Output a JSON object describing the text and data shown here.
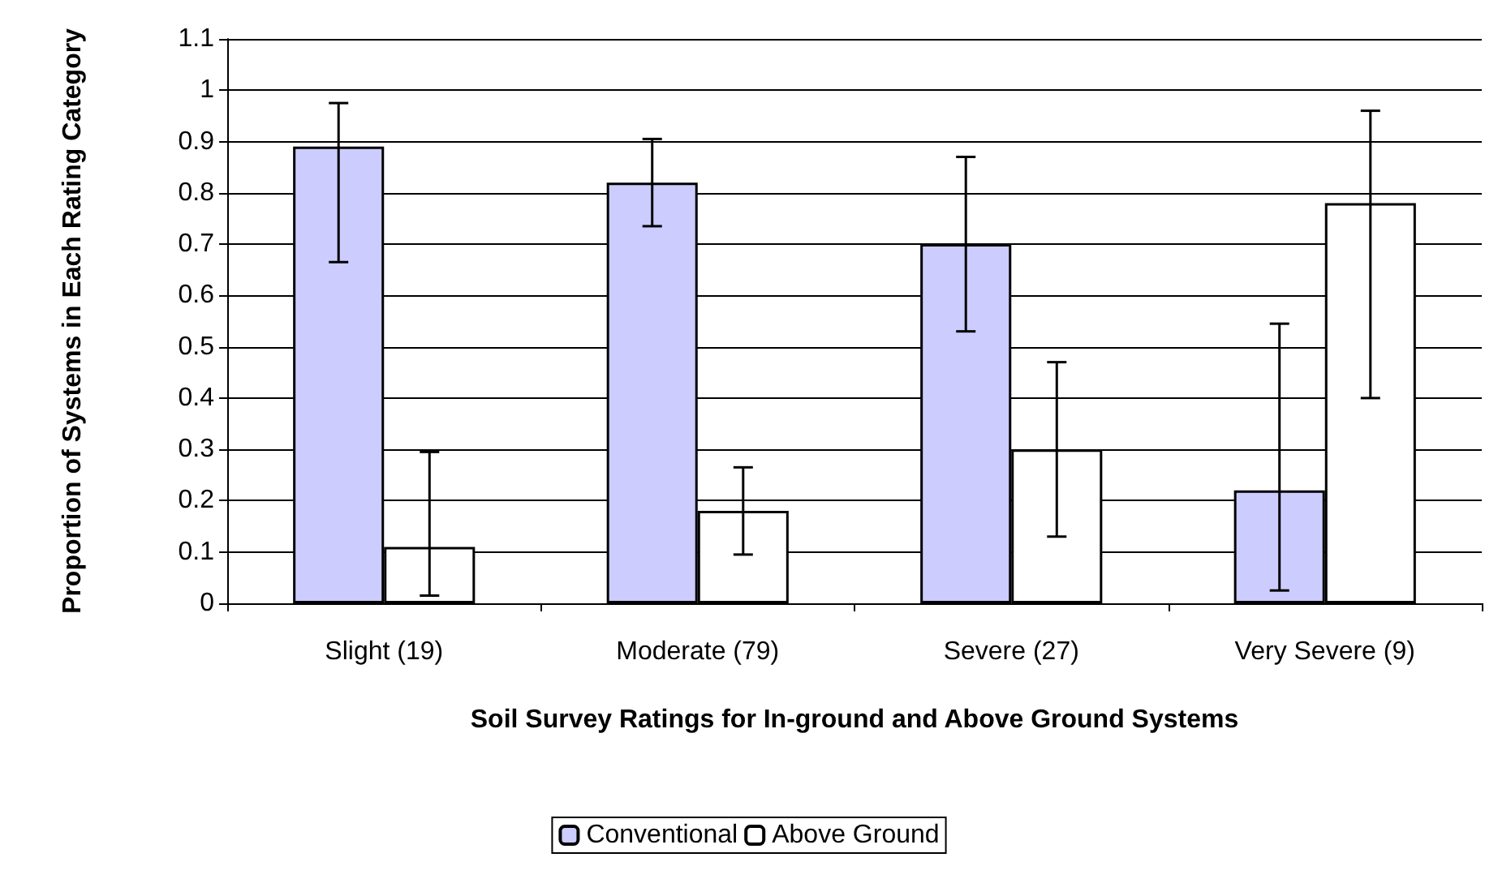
{
  "chart_data": {
    "type": "bar",
    "xlabel": "Soil Survey Ratings for In-ground and Above Ground Systems",
    "ylabel": "Proportion of Systems in Each Rating Category",
    "categories": [
      "Slight (19)",
      "Moderate (79)",
      "Severe (27)",
      "Very Severe (9)"
    ],
    "series": [
      {
        "name": "Conventional",
        "color": "#ccccff",
        "values": [
          0.89,
          0.82,
          0.7,
          0.22
        ],
        "errors": [
          [
            0.665,
            0.975
          ],
          [
            0.735,
            0.905
          ],
          [
            0.53,
            0.87
          ],
          [
            0.025,
            0.545
          ]
        ]
      },
      {
        "name": "Above Ground",
        "color": "#ffffff",
        "values": [
          0.11,
          0.18,
          0.3,
          0.78
        ],
        "errors": [
          [
            0.015,
            0.295
          ],
          [
            0.095,
            0.265
          ],
          [
            0.13,
            0.47
          ],
          [
            0.4,
            0.96
          ]
        ]
      }
    ],
    "ylim": [
      0,
      1.1
    ],
    "yticks": [
      0,
      0.1,
      0.2,
      0.3,
      0.4,
      0.5,
      0.6,
      0.7,
      0.8,
      0.9,
      1,
      1.1
    ],
    "grid": "y",
    "legend": "bottom"
  }
}
